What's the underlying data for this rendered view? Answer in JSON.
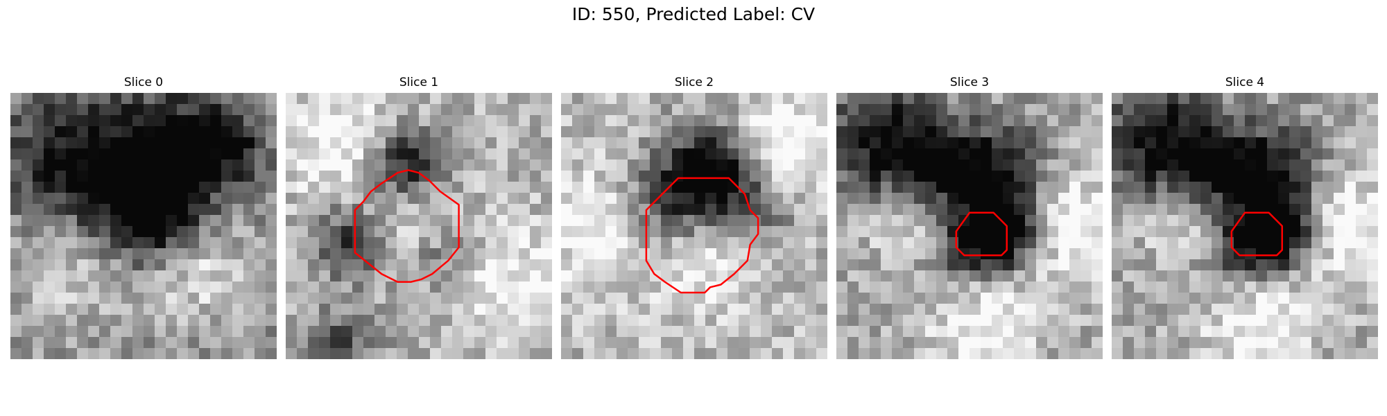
{
  "figure": {
    "title": "ID: 550, Predicted Label: CV"
  },
  "panels": [
    {
      "label": "Slice 0",
      "seed": 11,
      "dark_blobs": [
        [
          0.52,
          0.44,
          0.14,
          0.9
        ],
        [
          0.78,
          0.2,
          0.12,
          0.55
        ],
        [
          0.22,
          0.25,
          0.16,
          0.55
        ],
        [
          0.55,
          0.18,
          0.12,
          0.45
        ]
      ],
      "light_blobs": [
        [
          0.7,
          0.65,
          0.15,
          0.35
        ],
        [
          0.25,
          0.65,
          0.18,
          0.25
        ]
      ],
      "base": 0.55,
      "contour": []
    },
    {
      "label": "Slice 1",
      "seed": 23,
      "dark_blobs": [
        [
          0.45,
          0.28,
          0.1,
          0.7
        ],
        [
          0.25,
          0.55,
          0.1,
          0.5
        ],
        [
          0.58,
          0.58,
          0.12,
          0.4
        ],
        [
          0.2,
          0.95,
          0.1,
          0.4
        ]
      ],
      "light_blobs": [
        [
          0.48,
          0.48,
          0.13,
          0.4
        ],
        [
          0.2,
          0.2,
          0.15,
          0.3
        ],
        [
          0.8,
          0.7,
          0.15,
          0.3
        ]
      ],
      "base": 0.7,
      "contour": [
        [
          0.32,
          0.37
        ],
        [
          0.36,
          0.34
        ],
        [
          0.42,
          0.3
        ],
        [
          0.46,
          0.29
        ],
        [
          0.5,
          0.3
        ],
        [
          0.54,
          0.33
        ],
        [
          0.58,
          0.37
        ],
        [
          0.65,
          0.42
        ],
        [
          0.65,
          0.58
        ],
        [
          0.61,
          0.63
        ],
        [
          0.55,
          0.68
        ],
        [
          0.51,
          0.7
        ],
        [
          0.47,
          0.71
        ],
        [
          0.42,
          0.71
        ],
        [
          0.36,
          0.68
        ],
        [
          0.31,
          0.64
        ],
        [
          0.26,
          0.6
        ],
        [
          0.26,
          0.44
        ],
        [
          0.29,
          0.41
        ]
      ]
    },
    {
      "label": "Slice 2",
      "seed": 37,
      "dark_blobs": [
        [
          0.55,
          0.3,
          0.12,
          0.75
        ],
        [
          0.4,
          0.45,
          0.14,
          0.45
        ],
        [
          0.72,
          0.45,
          0.1,
          0.35
        ]
      ],
      "light_blobs": [
        [
          0.52,
          0.6,
          0.14,
          0.35
        ],
        [
          0.15,
          0.5,
          0.15,
          0.3
        ],
        [
          0.85,
          0.2,
          0.12,
          0.4
        ]
      ],
      "base": 0.72,
      "contour": [
        [
          0.44,
          0.32
        ],
        [
          0.63,
          0.32
        ],
        [
          0.69,
          0.38
        ],
        [
          0.71,
          0.44
        ],
        [
          0.74,
          0.47
        ],
        [
          0.74,
          0.53
        ],
        [
          0.71,
          0.57
        ],
        [
          0.7,
          0.63
        ],
        [
          0.65,
          0.68
        ],
        [
          0.6,
          0.72
        ],
        [
          0.56,
          0.73
        ],
        [
          0.54,
          0.75
        ],
        [
          0.45,
          0.75
        ],
        [
          0.39,
          0.71
        ],
        [
          0.35,
          0.68
        ],
        [
          0.32,
          0.63
        ],
        [
          0.32,
          0.44
        ],
        [
          0.38,
          0.38
        ]
      ]
    },
    {
      "label": "Slice 3",
      "seed": 53,
      "dark_blobs": [
        [
          0.62,
          0.52,
          0.11,
          0.95
        ],
        [
          0.2,
          0.18,
          0.15,
          0.7
        ],
        [
          0.42,
          0.3,
          0.1,
          0.55
        ],
        [
          0.62,
          0.28,
          0.12,
          0.5
        ],
        [
          0.45,
          0.6,
          0.1,
          0.4
        ]
      ],
      "light_blobs": [
        [
          0.3,
          0.5,
          0.12,
          0.3
        ],
        [
          0.85,
          0.5,
          0.15,
          0.4
        ],
        [
          0.55,
          0.85,
          0.15,
          0.35
        ]
      ],
      "base": 0.65,
      "contour": [
        [
          0.5,
          0.45
        ],
        [
          0.59,
          0.45
        ],
        [
          0.64,
          0.5
        ],
        [
          0.64,
          0.59
        ],
        [
          0.62,
          0.61
        ],
        [
          0.48,
          0.61
        ],
        [
          0.45,
          0.58
        ],
        [
          0.45,
          0.52
        ]
      ]
    },
    {
      "label": "Slice 4",
      "seed": 53,
      "dark_blobs": [
        [
          0.62,
          0.52,
          0.11,
          0.95
        ],
        [
          0.2,
          0.18,
          0.15,
          0.7
        ],
        [
          0.42,
          0.3,
          0.1,
          0.55
        ],
        [
          0.62,
          0.28,
          0.12,
          0.5
        ],
        [
          0.45,
          0.6,
          0.1,
          0.4
        ]
      ],
      "light_blobs": [
        [
          0.3,
          0.5,
          0.12,
          0.3
        ],
        [
          0.85,
          0.5,
          0.15,
          0.4
        ],
        [
          0.55,
          0.85,
          0.15,
          0.35
        ]
      ],
      "base": 0.65,
      "contour": [
        [
          0.5,
          0.45
        ],
        [
          0.59,
          0.45
        ],
        [
          0.64,
          0.5
        ],
        [
          0.64,
          0.59
        ],
        [
          0.62,
          0.61
        ],
        [
          0.48,
          0.61
        ],
        [
          0.45,
          0.58
        ],
        [
          0.45,
          0.52
        ]
      ]
    }
  ],
  "style": {
    "contour_color": "#ff0000"
  }
}
